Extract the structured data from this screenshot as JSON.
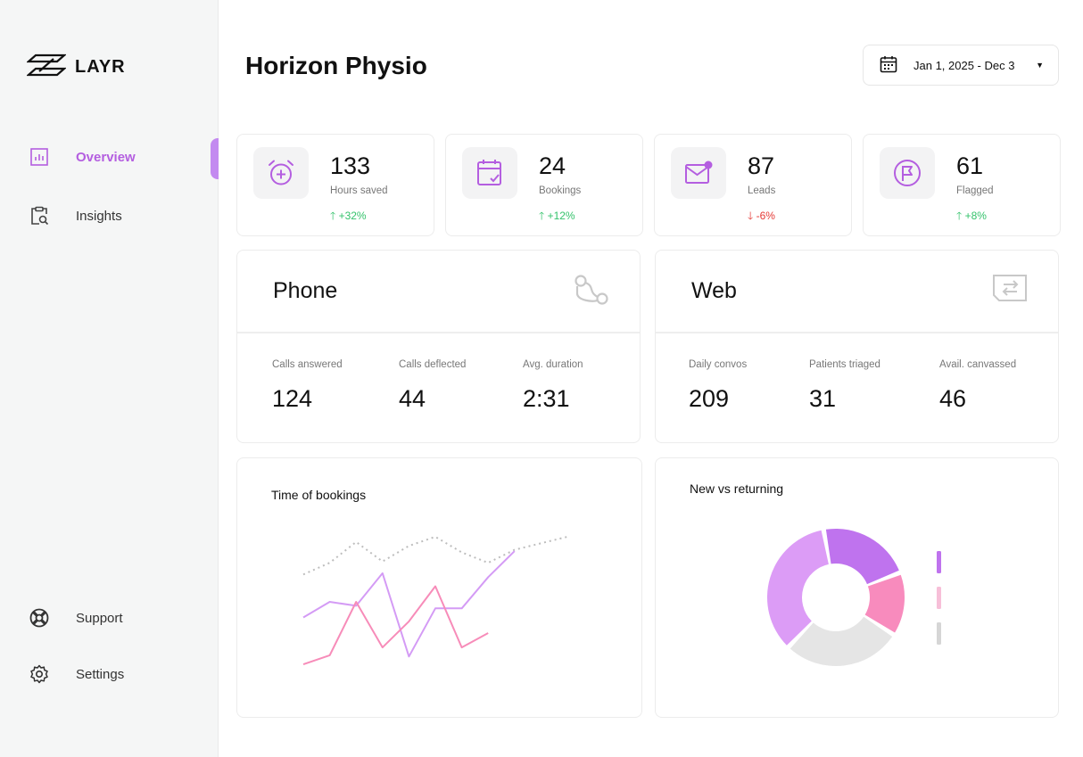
{
  "brand": {
    "name": "LAYR"
  },
  "nav": {
    "overview": "Overview",
    "insights": "Insights",
    "support": "Support",
    "settings": "Settings"
  },
  "page": {
    "title": "Horizon Physio"
  },
  "date_range": {
    "value": "Jan 1, 2025 - Dec 3"
  },
  "stats": [
    {
      "value": "133",
      "label": "Hours saved",
      "change": "+32%",
      "trend": "up"
    },
    {
      "value": "24",
      "label": "Bookings",
      "change": "+12%",
      "trend": "up"
    },
    {
      "value": "87",
      "label": "Leads",
      "change": "-6%",
      "trend": "down"
    },
    {
      "value": "61",
      "label": "Flagged",
      "change": "+8%",
      "trend": "up"
    }
  ],
  "phone": {
    "title": "Phone",
    "metrics": [
      {
        "label": "Calls answered",
        "value": "124"
      },
      {
        "label": "Calls deflected",
        "value": "44"
      },
      {
        "label": "Avg. duration",
        "value": "2:31"
      }
    ]
  },
  "web": {
    "title": "Web",
    "metrics": [
      {
        "label": "Daily convos",
        "value": "209"
      },
      {
        "label": "Patients triaged",
        "value": "31"
      },
      {
        "label": "Avail. canvassed",
        "value": "46"
      }
    ]
  },
  "colors": {
    "accent": "#b45ee0",
    "up": "#34c26b",
    "down": "#e53935",
    "violet_light": "#d49bf5",
    "pink": "#f78cb9",
    "grey": "#e5e5e5",
    "violet": "#bf73ee"
  },
  "chart_data": [
    {
      "type": "line",
      "title": "Time of bookings",
      "x": [
        0,
        1,
        2,
        3,
        4,
        5,
        6,
        7,
        8,
        9,
        10
      ],
      "ylim": [
        0,
        100
      ],
      "series": [
        {
          "style": "dotted",
          "color": "#bdbdbd",
          "values": [
            71,
            80,
            96,
            81,
            93,
            100,
            88,
            80,
            90,
            95,
            100
          ]
        },
        {
          "style": "solid",
          "color": "#d49bf5",
          "values": [
            38,
            50,
            47,
            72,
            8,
            45,
            45,
            69,
            89,
            null,
            null
          ]
        },
        {
          "style": "solid",
          "color": "#f78cb9",
          "values": [
            2,
            9,
            50,
            15,
            35,
            62,
            15,
            26,
            null,
            null,
            null
          ]
        }
      ]
    },
    {
      "type": "pie",
      "title": "New vs returning",
      "legend": "right",
      "slices": [
        {
          "value": 22,
          "color": "#bf73ee"
        },
        {
          "value": 15,
          "color": "#f88bbd"
        },
        {
          "value": 28,
          "color": "#e5e5e5"
        },
        {
          "value": 35,
          "color": "#dc9cf6"
        }
      ]
    }
  ]
}
